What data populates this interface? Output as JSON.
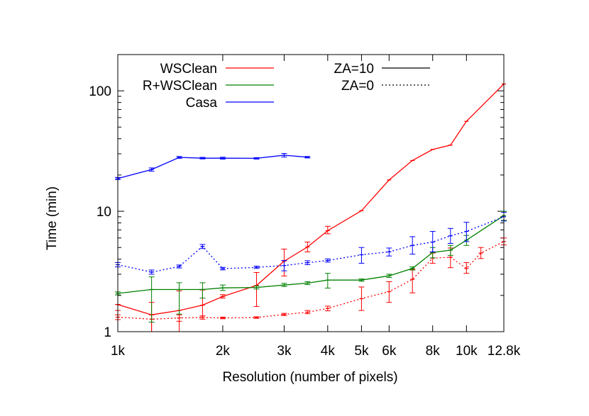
{
  "chart_data": {
    "type": "line",
    "title": "",
    "xlabel": "Resolution (number of pixels)",
    "ylabel": "Time (min)",
    "x_scale": "log",
    "y_scale": "log",
    "xlim": [
      1000,
      12800
    ],
    "ylim": [
      1,
      200
    ],
    "x_ticks": [
      {
        "value": 1000,
        "label": "1k"
      },
      {
        "value": 2000,
        "label": "2k"
      },
      {
        "value": 3000,
        "label": "3k"
      },
      {
        "value": 4000,
        "label": "4k"
      },
      {
        "value": 5000,
        "label": "5k"
      },
      {
        "value": 6000,
        "label": "6k"
      },
      {
        "value": 8000,
        "label": "8k"
      },
      {
        "value": 10000,
        "label": "10k"
      },
      {
        "value": 12800,
        "label": "12.8k"
      }
    ],
    "y_ticks": [
      {
        "value": 1,
        "label": "1"
      },
      {
        "value": 10,
        "label": "10"
      },
      {
        "value": 100,
        "label": "100"
      }
    ],
    "grid": false,
    "legend_placement": "top",
    "legend": {
      "series": [
        {
          "name": "WSClean",
          "color": "#ff0000"
        },
        {
          "name": "R+WSClean",
          "color": "#008000"
        },
        {
          "name": "Casa",
          "color": "#0000ff"
        }
      ],
      "styles": [
        {
          "name": "ZA=10",
          "dash": "solid"
        },
        {
          "name": "ZA=0",
          "dash": "dotted"
        }
      ]
    },
    "series": [
      {
        "name": "WSClean",
        "za": "ZA=10",
        "color": "#ff0000",
        "dash": "solid",
        "x": [
          1000,
          1250,
          1500,
          1750,
          2000,
          2500,
          3000,
          3500,
          4000,
          5000,
          6000,
          7000,
          8000,
          9000,
          10000,
          12800
        ],
        "y": [
          1.68,
          1.38,
          1.5,
          1.66,
          1.96,
          2.42,
          3.85,
          5.05,
          6.9,
          10.1,
          18.2,
          26.4,
          32.6,
          35.4,
          55.8,
          114
        ],
        "err_low": [
          1.5,
          1.0,
          1.22,
          1.35,
          1.9,
          1.62,
          2.9,
          4.6,
          6.5,
          10.1,
          18.2,
          26.4,
          32.6,
          35.4,
          55.8,
          114
        ],
        "err_high": [
          1.68,
          1.75,
          2.18,
          2.22,
          2.03,
          3.1,
          4.85,
          5.55,
          7.5,
          10.1,
          18.2,
          26.4,
          32.6,
          35.4,
          55.8,
          114
        ]
      },
      {
        "name": "WSClean",
        "za": "ZA=0",
        "color": "#ff0000",
        "dash": "dotted",
        "x": [
          1000,
          1250,
          1500,
          1750,
          2000,
          2500,
          3000,
          3500,
          4000,
          5000,
          6000,
          7000,
          8000,
          9000,
          10000,
          11000,
          12800
        ],
        "y": [
          1.32,
          1.27,
          1.3,
          1.31,
          1.3,
          1.31,
          1.39,
          1.45,
          1.56,
          1.88,
          2.15,
          2.72,
          4.08,
          4.15,
          3.35,
          4.5,
          5.6
        ],
        "err_low": [
          1.26,
          1.0,
          1.0,
          1.27,
          1.28,
          1.29,
          1.36,
          1.41,
          1.49,
          1.5,
          1.75,
          2.1,
          3.7,
          3.4,
          3.05,
          4.05,
          5.25
        ],
        "err_high": [
          1.38,
          1.38,
          1.38,
          1.35,
          1.32,
          1.33,
          1.42,
          1.5,
          1.63,
          2.35,
          2.6,
          3.3,
          4.5,
          4.95,
          3.75,
          5.0,
          6.0
        ]
      },
      {
        "name": "R+WSClean",
        "za": "ZA=10",
        "color": "#008000",
        "dash": "solid",
        "x": [
          1000,
          1250,
          1500,
          1750,
          2000,
          2500,
          3000,
          3500,
          4000,
          5000,
          6000,
          7000,
          8000,
          9000,
          10000,
          12800
        ],
        "y": [
          2.08,
          2.24,
          2.24,
          2.24,
          2.31,
          2.33,
          2.44,
          2.53,
          2.68,
          2.68,
          2.91,
          3.35,
          4.55,
          4.75,
          5.75,
          9.2
        ],
        "err_low": [
          2.02,
          1.2,
          1.4,
          1.9,
          2.2,
          2.26,
          2.37,
          2.46,
          2.3,
          2.62,
          2.82,
          3.25,
          4.1,
          4.3,
          5.2,
          8.4
        ],
        "err_high": [
          2.14,
          2.85,
          2.55,
          2.55,
          2.44,
          2.4,
          2.52,
          2.6,
          3.05,
          2.74,
          3.0,
          3.45,
          5.0,
          5.2,
          6.3,
          10.0
        ]
      },
      {
        "name": "Casa",
        "za": "ZA=10",
        "color": "#0000ff",
        "dash": "solid",
        "x": [
          1000,
          1250,
          1500,
          1750,
          2000,
          2500,
          3000,
          3500
        ],
        "y": [
          18.7,
          22.2,
          28.0,
          27.6,
          27.6,
          27.5,
          29.2,
          28.1
        ],
        "err_low": [
          18.3,
          21.5,
          27.5,
          27.2,
          27.1,
          27.1,
          28.2,
          27.7
        ],
        "err_high": [
          19.1,
          22.9,
          28.5,
          28.0,
          28.1,
          27.9,
          30.2,
          28.5
        ]
      },
      {
        "name": "Casa",
        "za": "ZA=0",
        "color": "#0000ff",
        "dash": "dotted",
        "x": [
          1000,
          1250,
          1500,
          1750,
          2000,
          2500,
          3000,
          3500,
          4000,
          5000,
          6000,
          7000,
          8000,
          9000,
          10000,
          12800
        ],
        "y": [
          3.6,
          3.12,
          3.48,
          5.1,
          3.34,
          3.42,
          3.54,
          3.74,
          3.9,
          4.35,
          4.6,
          5.2,
          5.55,
          6.25,
          6.8,
          9.0
        ],
        "err_low": [
          3.45,
          3.0,
          3.38,
          4.9,
          3.26,
          3.35,
          3.2,
          3.6,
          3.78,
          3.7,
          4.25,
          4.4,
          4.6,
          5.4,
          5.6,
          8.3
        ],
        "err_high": [
          3.75,
          3.25,
          3.58,
          5.3,
          3.42,
          3.5,
          3.9,
          3.88,
          4.02,
          5.0,
          4.95,
          6.15,
          6.8,
          7.2,
          8.1,
          9.8
        ]
      }
    ]
  }
}
